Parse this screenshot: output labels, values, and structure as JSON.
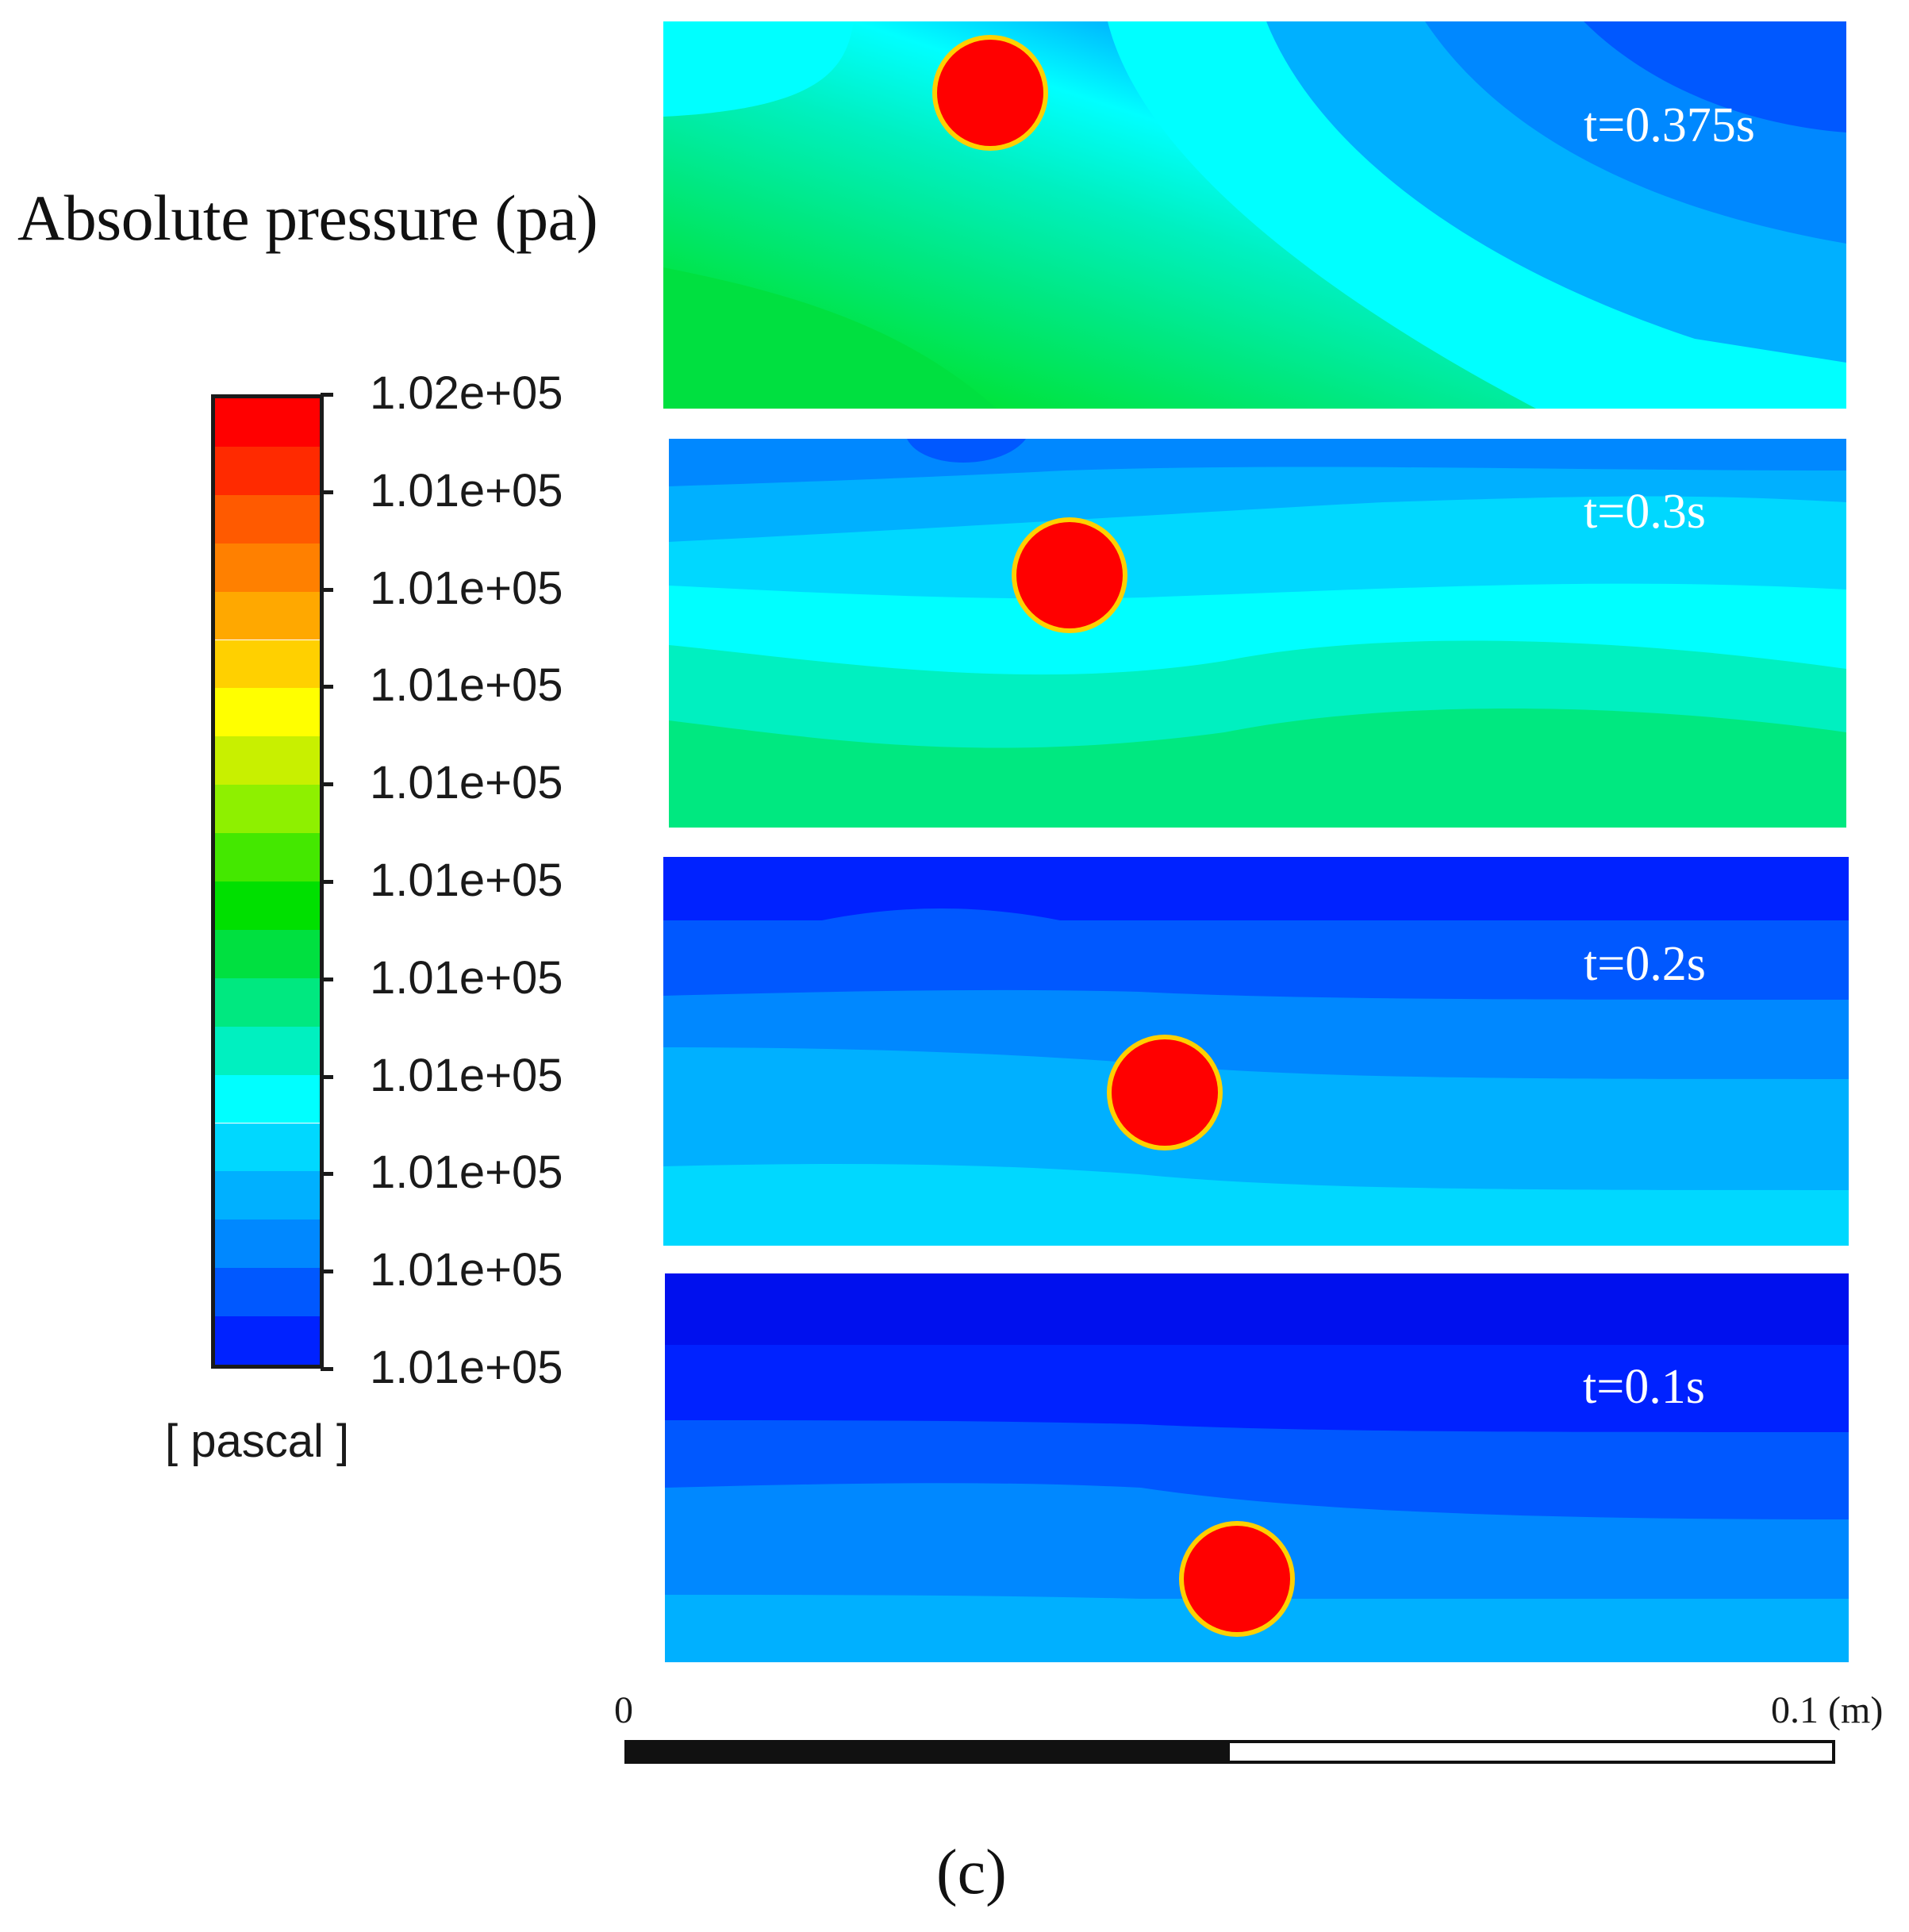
{
  "figure": {
    "title": "Absolute pressure (pa)",
    "caption": "(c)"
  },
  "legend": {
    "unit": "[ pascal ]",
    "labels": [
      "1.02e+05",
      "1.01e+05",
      "1.01e+05",
      "1.01e+05",
      "1.01e+05",
      "1.01e+05",
      "1.01e+05",
      "1.01e+05",
      "1.01e+05",
      "1.01e+05",
      "1.01e+05"
    ],
    "colors": [
      "#ff0000",
      "#ff2a00",
      "#ff5a00",
      "#ff8000",
      "#ffa800",
      "#ffd000",
      "#ffff00",
      "#c8f000",
      "#8ef000",
      "#44e800",
      "#00e000",
      "#00e040",
      "#00e880",
      "#00f0c0",
      "#00ffff",
      "#00d8ff",
      "#00b0ff",
      "#0088ff",
      "#0058ff",
      "#0022ff"
    ]
  },
  "panels": [
    {
      "label": "t=0.375s"
    },
    {
      "label": "t=0.3s"
    },
    {
      "label": "t=0.2s"
    },
    {
      "label": "t=0.1s"
    }
  ],
  "scale_bar": {
    "start_label": "0",
    "end_label": "0.1 (m)"
  }
}
